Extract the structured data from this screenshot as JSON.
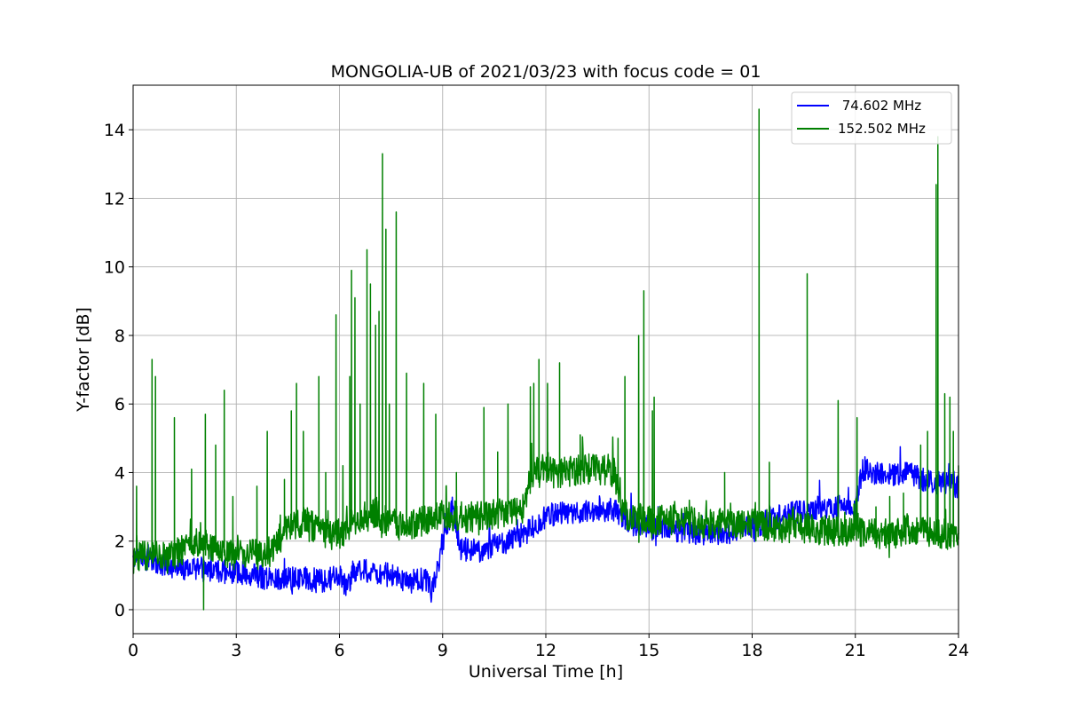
{
  "chart_data": {
    "type": "line",
    "title": "MONGOLIA-UB of 2021/03/23 with focus code = 01",
    "xlabel": "Universal Time [h]",
    "ylabel": "Y-factor [dB]",
    "xlim": [
      0,
      24
    ],
    "ylim": [
      -0.7,
      15.3
    ],
    "xticks": [
      0,
      3,
      6,
      9,
      12,
      15,
      18,
      21,
      24
    ],
    "yticks": [
      0,
      2,
      4,
      6,
      8,
      10,
      12,
      14
    ],
    "grid": true,
    "legend_position": "top-right",
    "series": [
      {
        "name": " 74.602 MHz",
        "color": "#0000ff",
        "x": [
          0,
          0.5,
          1,
          1.5,
          2,
          2.05,
          2.1,
          2.5,
          3,
          3.5,
          4,
          4.5,
          5,
          5.5,
          6,
          6.2,
          6.5,
          7,
          7.5,
          8,
          8.5,
          8.7,
          9,
          9.3,
          9.5,
          10,
          10.5,
          11,
          11.5,
          12,
          12.5,
          13,
          13.5,
          14,
          14.5,
          15,
          15.5,
          16,
          16.5,
          17,
          17.5,
          18,
          18.5,
          19,
          19.5,
          20,
          20.5,
          21,
          21.2,
          21.5,
          22,
          22.5,
          23,
          23.5,
          24
        ],
        "y": [
          1.6,
          1.4,
          1.3,
          1.2,
          1.2,
          0.8,
          1.2,
          1.1,
          1.1,
          1.0,
          0.9,
          0.9,
          0.9,
          0.85,
          1.0,
          0.6,
          1.2,
          1.1,
          1.0,
          0.8,
          0.9,
          0.5,
          2.0,
          3.0,
          1.8,
          1.7,
          1.9,
          2.0,
          2.3,
          2.7,
          2.8,
          2.8,
          2.9,
          2.9,
          2.5,
          2.4,
          2.3,
          2.3,
          2.2,
          2.2,
          2.3,
          2.4,
          2.6,
          2.8,
          2.9,
          3.0,
          3.0,
          3.0,
          4.1,
          4.0,
          3.9,
          4.0,
          3.8,
          3.7,
          3.6
        ]
      },
      {
        "name": "152.502 MHz",
        "color": "#008000",
        "x": [
          0,
          0.5,
          1,
          1.5,
          2,
          2.5,
          3,
          3.5,
          4,
          4.5,
          5,
          5.5,
          6,
          6.5,
          7,
          7.5,
          8,
          8.5,
          9,
          9.5,
          10,
          10.5,
          11,
          11.4,
          11.5,
          12,
          12.5,
          13,
          13.5,
          14,
          14.2,
          14.5,
          15,
          15.5,
          16,
          16.5,
          17,
          17.5,
          18,
          18.5,
          19,
          19.5,
          20,
          20.5,
          21,
          21.5,
          22,
          22.5,
          23,
          23.5,
          24
        ],
        "y": [
          1.5,
          1.6,
          1.5,
          1.8,
          2.0,
          1.7,
          1.6,
          1.6,
          1.7,
          2.4,
          2.6,
          2.2,
          2.2,
          2.6,
          2.8,
          2.5,
          2.4,
          2.6,
          2.8,
          2.7,
          2.7,
          2.8,
          2.8,
          3.0,
          4.0,
          4.0,
          4.0,
          4.1,
          4.1,
          4.0,
          2.8,
          2.7,
          2.6,
          2.6,
          2.6,
          2.5,
          2.5,
          2.5,
          2.5,
          2.4,
          2.4,
          2.4,
          2.3,
          2.3,
          2.3,
          2.2,
          2.2,
          2.3,
          2.3,
          2.2,
          2.2
        ],
        "spikes": [
          [
            0.1,
            3.6
          ],
          [
            0.55,
            7.3
          ],
          [
            0.65,
            6.8
          ],
          [
            0.55,
            5.4
          ],
          [
            1.2,
            5.6
          ],
          [
            1.7,
            4.1
          ],
          [
            2.05,
            0.0
          ],
          [
            2.1,
            5.7
          ],
          [
            2.4,
            4.8
          ],
          [
            2.65,
            6.4
          ],
          [
            2.9,
            3.3
          ],
          [
            3.6,
            3.6
          ],
          [
            3.9,
            5.2
          ],
          [
            4.4,
            3.8
          ],
          [
            4.6,
            5.8
          ],
          [
            4.75,
            6.6
          ],
          [
            4.95,
            5.2
          ],
          [
            5.4,
            6.8
          ],
          [
            5.6,
            4.0
          ],
          [
            5.9,
            8.6
          ],
          [
            6.1,
            4.2
          ],
          [
            6.3,
            6.8
          ],
          [
            6.35,
            9.9
          ],
          [
            6.45,
            9.1
          ],
          [
            6.6,
            6.0
          ],
          [
            6.8,
            10.5
          ],
          [
            6.9,
            9.5
          ],
          [
            7.05,
            8.3
          ],
          [
            7.15,
            8.7
          ],
          [
            7.25,
            13.3
          ],
          [
            7.35,
            11.1
          ],
          [
            7.45,
            6.0
          ],
          [
            7.65,
            11.6
          ],
          [
            7.95,
            6.9
          ],
          [
            8.45,
            6.6
          ],
          [
            8.8,
            5.7
          ],
          [
            9.1,
            3.6
          ],
          [
            9.4,
            4.0
          ],
          [
            10.2,
            5.9
          ],
          [
            10.6,
            4.6
          ],
          [
            10.9,
            6.0
          ],
          [
            11.55,
            6.5
          ],
          [
            11.65,
            6.6
          ],
          [
            11.8,
            7.3
          ],
          [
            12.05,
            6.6
          ],
          [
            12.4,
            7.2
          ],
          [
            13.0,
            5.1
          ],
          [
            14.1,
            5.0
          ],
          [
            14.3,
            6.8
          ],
          [
            14.7,
            8.0
          ],
          [
            14.85,
            9.3
          ],
          [
            15.1,
            5.8
          ],
          [
            15.15,
            6.2
          ],
          [
            17.2,
            4.0
          ],
          [
            18.2,
            14.6
          ],
          [
            18.5,
            4.3
          ],
          [
            19.2,
            3.0
          ],
          [
            19.6,
            9.8
          ],
          [
            20.5,
            6.1
          ],
          [
            21.05,
            5.6
          ],
          [
            21.6,
            3.0
          ],
          [
            22.0,
            3.3
          ],
          [
            22.4,
            3.4
          ],
          [
            22.9,
            4.8
          ],
          [
            23.1,
            5.2
          ],
          [
            23.35,
            12.4
          ],
          [
            23.4,
            13.8
          ],
          [
            23.6,
            6.3
          ],
          [
            23.75,
            6.2
          ],
          [
            23.85,
            5.2
          ],
          [
            24.0,
            4.2
          ]
        ]
      }
    ]
  }
}
